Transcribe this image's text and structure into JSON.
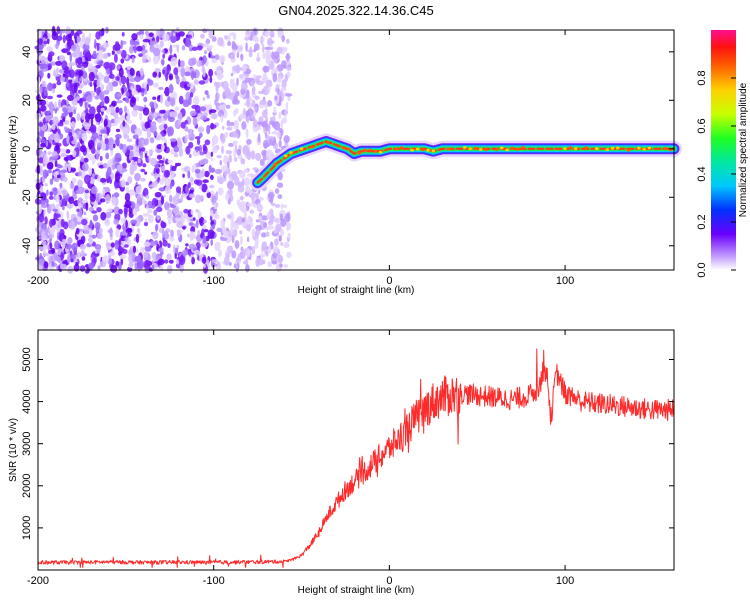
{
  "title": "GN04.2025.322.14.36.C45",
  "colors": {
    "signal_line": "#ff2a2a",
    "noise_speckle": "#6a00ff",
    "axis": "#000000",
    "background": "#ffffff"
  },
  "chart_data": [
    {
      "type": "heatmap",
      "name": "spectrogram",
      "title": "",
      "xlabel": "Height of straight line (km)",
      "ylabel": "Frequency (Hz)",
      "xlim": [
        -200,
        162
      ],
      "ylim": [
        -50,
        49
      ],
      "xticks": [
        -200,
        -100,
        0,
        100
      ],
      "yticks": [
        -40,
        -20,
        0,
        20,
        40
      ],
      "noise_region_x": [
        -200,
        -57
      ],
      "signal_track": {
        "x": [
          -75,
          -72,
          -68,
          -64,
          -60,
          -56,
          -52,
          -48,
          -44,
          -40,
          -36,
          -32,
          -28,
          -24,
          -20,
          -16,
          -10,
          -5,
          0,
          5,
          10,
          15,
          20,
          25,
          30,
          40,
          50,
          60,
          70,
          80,
          90,
          100,
          110,
          120,
          130,
          140,
          150,
          162
        ],
        "y": [
          -14,
          -12,
          -9,
          -6,
          -4,
          -2,
          -1,
          0,
          1,
          2,
          3,
          2,
          1,
          0,
          -2,
          -1,
          -1,
          -1,
          0,
          0,
          0,
          0,
          0,
          -1,
          0,
          0,
          0,
          0,
          0,
          0,
          0,
          0,
          0,
          0,
          0,
          0,
          0,
          0
        ]
      },
      "colorbar": {
        "label": "Normalized spectral amplitude",
        "range": [
          0.0,
          1.0
        ],
        "ticks": [
          0.0,
          0.2,
          0.4,
          0.6,
          0.8
        ]
      }
    },
    {
      "type": "line",
      "name": "snr",
      "title": "",
      "xlabel": "Height of straight line (km)",
      "ylabel": "SNR (10 * v/v)",
      "xlim": [
        -200,
        162
      ],
      "ylim": [
        0,
        5700
      ],
      "xticks": [
        -200,
        -100,
        0,
        100
      ],
      "yticks": [
        1000,
        2000,
        3000,
        4000,
        5000
      ],
      "series": [
        {
          "name": "SNR",
          "x": [
            -200,
            -180,
            -160,
            -140,
            -120,
            -100,
            -80,
            -60,
            -55,
            -50,
            -45,
            -40,
            -35,
            -30,
            -25,
            -20,
            -15,
            -10,
            -5,
            0,
            5,
            10,
            15,
            20,
            25,
            30,
            35,
            40,
            50,
            60,
            70,
            80,
            85,
            88,
            90,
            92,
            95,
            100,
            110,
            120,
            130,
            140,
            150,
            162
          ],
          "y": [
            180,
            180,
            190,
            180,
            185,
            180,
            190,
            200,
            250,
            350,
            600,
            900,
            1300,
            1600,
            1900,
            2100,
            2300,
            2500,
            2700,
            2900,
            3100,
            3350,
            3600,
            3800,
            4000,
            4100,
            4150,
            4200,
            4150,
            4100,
            4050,
            4150,
            4300,
            4800,
            4500,
            3600,
            4700,
            4200,
            4000,
            3950,
            3900,
            3850,
            3800,
            3800
          ]
        }
      ]
    }
  ]
}
